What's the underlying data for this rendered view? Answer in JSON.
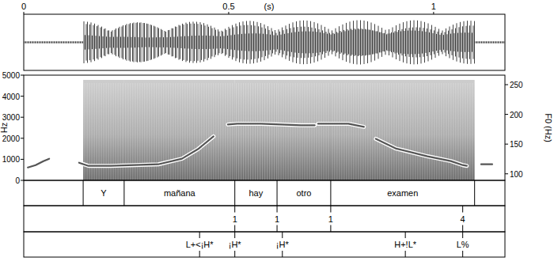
{
  "chart_data": {
    "type": "line",
    "x_label": "(s)",
    "y_label": "Hz",
    "y2_label": "F0 (Hz)",
    "xlim": [
      0,
      1.174
    ],
    "xticks": [
      0,
      0.5,
      1
    ],
    "ylim": [
      0,
      5000
    ],
    "yticks": [
      0,
      1000,
      2000,
      3000,
      4000,
      5000
    ],
    "y2lim": [
      89,
      266
    ],
    "y2ticks": [
      100,
      150,
      200,
      250
    ],
    "x": [
      0.01,
      0.029,
      0.048,
      0.062,
      0.098,
      0.135,
      0.158,
      0.212,
      0.328,
      0.386,
      0.425,
      0.463,
      0.48,
      0.498,
      0.521,
      0.579,
      0.676,
      0.71,
      0.714,
      0.718,
      0.792,
      0.83,
      0.845,
      0.859,
      0.907,
      0.985,
      1.042,
      1.071,
      1.081,
      1.098,
      1.116,
      1.143
    ],
    "series": [
      {
        "axis": "y2",
        "color": "#555555",
        "values": [
          110.7,
          114.7,
          121.4,
          125.4,
          null,
          118.7,
          113.4,
          113.4,
          116,
          125.4,
          141.5,
          162.9,
          null,
          183,
          184.3,
          184.3,
          181.7,
          181.7,
          null,
          184.3,
          184.3,
          179,
          null,
          158.9,
          142.8,
          129.5,
          121.4,
          114.7,
          113.4,
          null,
          116,
          116
        ]
      }
    ],
    "tiers": [
      {
        "intervals": [
          {
            "start": 0.145,
            "end": 0.245,
            "label": "Y"
          },
          {
            "start": 0.245,
            "end": 0.515,
            "label": "mañana"
          },
          {
            "start": 0.515,
            "end": 0.618,
            "label": "hay"
          },
          {
            "start": 0.618,
            "end": 0.749,
            "label": "otro"
          },
          {
            "start": 0.749,
            "end": 1.1,
            "label": "examen"
          }
        ]
      },
      {
        "points": [
          {
            "time": 0.515,
            "label": "1"
          },
          {
            "time": 0.618,
            "label": "1"
          },
          {
            "time": 0.749,
            "label": "1"
          },
          {
            "time": 1.071,
            "label": "4"
          }
        ]
      },
      {
        "points": [
          {
            "time": 0.429,
            "label": "L+<¡H*"
          },
          {
            "time": 0.515,
            "label": "¡H*"
          },
          {
            "time": 0.631,
            "label": "¡H*"
          },
          {
            "time": 0.931,
            "label": "H+!L*"
          },
          {
            "time": 1.071,
            "label": "L%"
          }
        ]
      }
    ]
  }
}
